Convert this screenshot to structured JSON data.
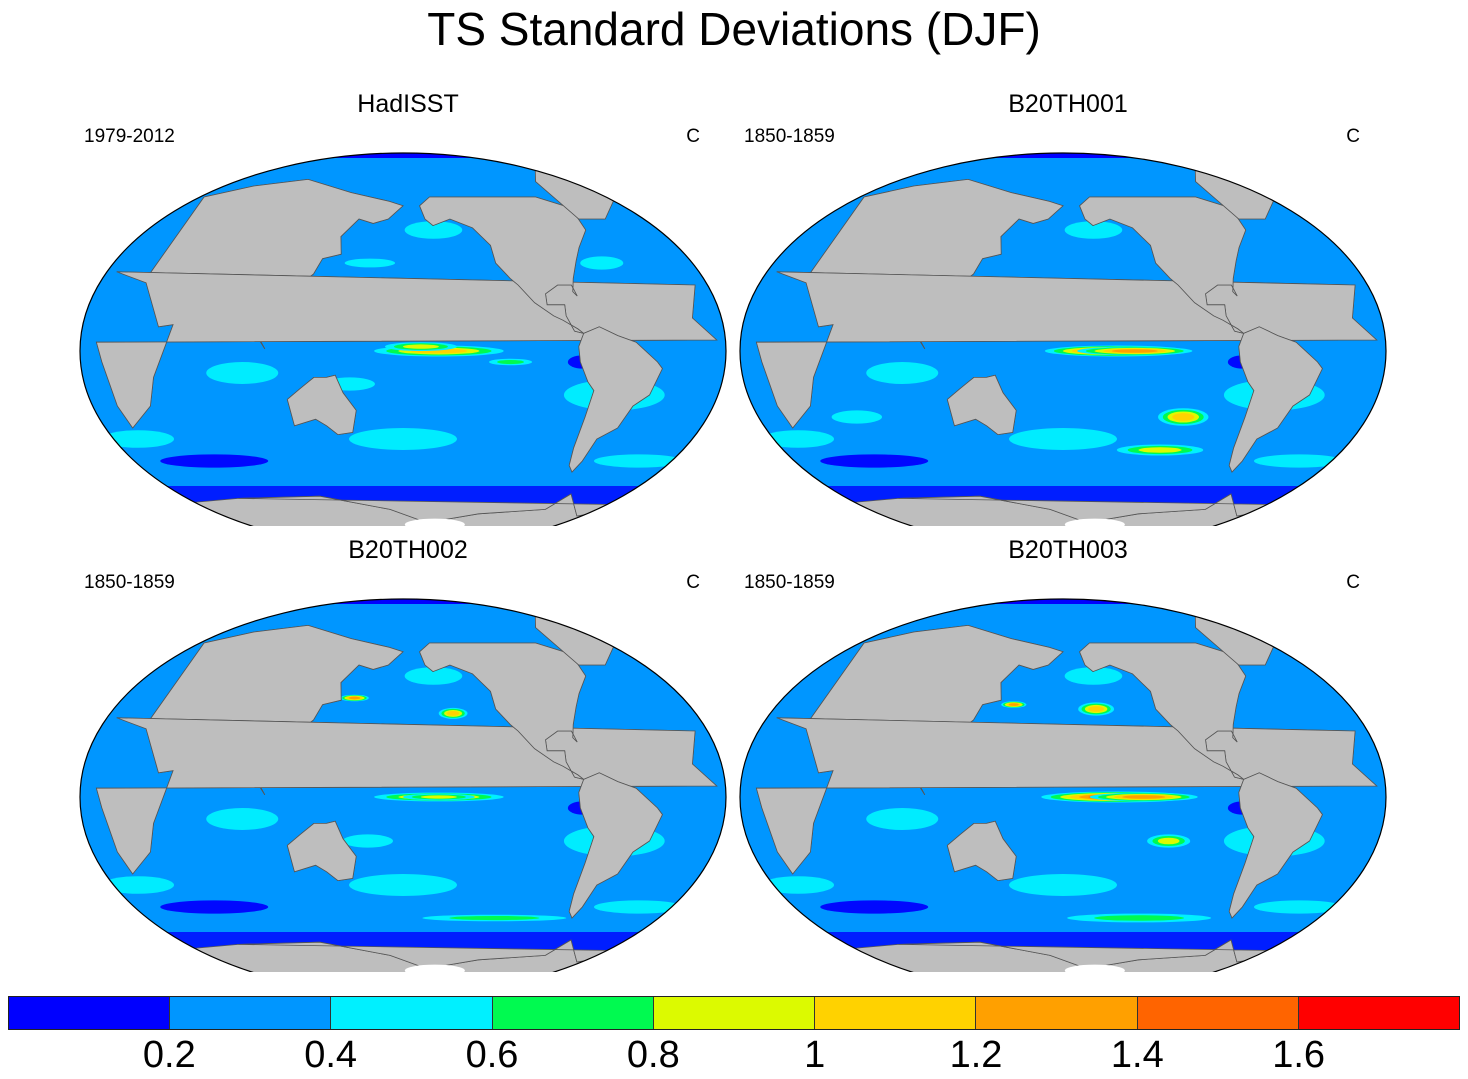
{
  "title": "TS Standard Deviations (DJF)",
  "panels": [
    {
      "title": "HadISST",
      "left_label": "1979-2012",
      "right_label": "C",
      "enso_level": 4,
      "pattern": "obs"
    },
    {
      "title": "B20TH001",
      "left_label": "1850-1859",
      "right_label": "C",
      "enso_level": 6,
      "pattern": "m1"
    },
    {
      "title": "B20TH002",
      "left_label": "1850-1859",
      "right_label": "C",
      "enso_level": 3,
      "pattern": "m2"
    },
    {
      "title": "B20TH003",
      "left_label": "1850-1859",
      "right_label": "C",
      "enso_level": 6,
      "pattern": "m3"
    }
  ],
  "colorbar": {
    "colors": [
      "#0000ff",
      "#0096ff",
      "#00f0ff",
      "#00fa50",
      "#dcfa00",
      "#ffd200",
      "#ffa000",
      "#ff6400",
      "#ff0000"
    ],
    "labels": [
      "0.2",
      "0.4",
      "0.6",
      "0.8",
      "1",
      "1.2",
      "1.4",
      "1.6"
    ]
  },
  "land_color": "#bebebe",
  "ice_color": "#ffffff"
}
